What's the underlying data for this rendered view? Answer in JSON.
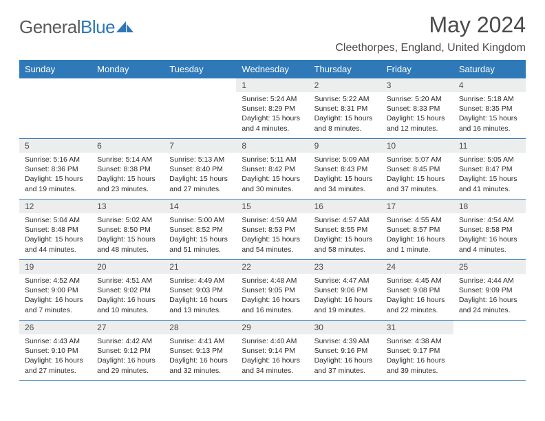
{
  "logo": {
    "text1": "General",
    "text2": "Blue"
  },
  "title": "May 2024",
  "location": "Cleethorpes, England, United Kingdom",
  "colors": {
    "header_bg": "#2f79b9",
    "header_text": "#ffffff",
    "daynum_bg": "#eceded",
    "text": "#2b2b2b",
    "rule": "#2f79b9"
  },
  "day_headers": [
    "Sunday",
    "Monday",
    "Tuesday",
    "Wednesday",
    "Thursday",
    "Friday",
    "Saturday"
  ],
  "weeks": [
    [
      null,
      null,
      null,
      {
        "n": "1",
        "sr": "5:24 AM",
        "ss": "8:29 PM",
        "dl": "15 hours and 4 minutes."
      },
      {
        "n": "2",
        "sr": "5:22 AM",
        "ss": "8:31 PM",
        "dl": "15 hours and 8 minutes."
      },
      {
        "n": "3",
        "sr": "5:20 AM",
        "ss": "8:33 PM",
        "dl": "15 hours and 12 minutes."
      },
      {
        "n": "4",
        "sr": "5:18 AM",
        "ss": "8:35 PM",
        "dl": "15 hours and 16 minutes."
      }
    ],
    [
      {
        "n": "5",
        "sr": "5:16 AM",
        "ss": "8:36 PM",
        "dl": "15 hours and 19 minutes."
      },
      {
        "n": "6",
        "sr": "5:14 AM",
        "ss": "8:38 PM",
        "dl": "15 hours and 23 minutes."
      },
      {
        "n": "7",
        "sr": "5:13 AM",
        "ss": "8:40 PM",
        "dl": "15 hours and 27 minutes."
      },
      {
        "n": "8",
        "sr": "5:11 AM",
        "ss": "8:42 PM",
        "dl": "15 hours and 30 minutes."
      },
      {
        "n": "9",
        "sr": "5:09 AM",
        "ss": "8:43 PM",
        "dl": "15 hours and 34 minutes."
      },
      {
        "n": "10",
        "sr": "5:07 AM",
        "ss": "8:45 PM",
        "dl": "15 hours and 37 minutes."
      },
      {
        "n": "11",
        "sr": "5:05 AM",
        "ss": "8:47 PM",
        "dl": "15 hours and 41 minutes."
      }
    ],
    [
      {
        "n": "12",
        "sr": "5:04 AM",
        "ss": "8:48 PM",
        "dl": "15 hours and 44 minutes."
      },
      {
        "n": "13",
        "sr": "5:02 AM",
        "ss": "8:50 PM",
        "dl": "15 hours and 48 minutes."
      },
      {
        "n": "14",
        "sr": "5:00 AM",
        "ss": "8:52 PM",
        "dl": "15 hours and 51 minutes."
      },
      {
        "n": "15",
        "sr": "4:59 AM",
        "ss": "8:53 PM",
        "dl": "15 hours and 54 minutes."
      },
      {
        "n": "16",
        "sr": "4:57 AM",
        "ss": "8:55 PM",
        "dl": "15 hours and 58 minutes."
      },
      {
        "n": "17",
        "sr": "4:55 AM",
        "ss": "8:57 PM",
        "dl": "16 hours and 1 minute."
      },
      {
        "n": "18",
        "sr": "4:54 AM",
        "ss": "8:58 PM",
        "dl": "16 hours and 4 minutes."
      }
    ],
    [
      {
        "n": "19",
        "sr": "4:52 AM",
        "ss": "9:00 PM",
        "dl": "16 hours and 7 minutes."
      },
      {
        "n": "20",
        "sr": "4:51 AM",
        "ss": "9:02 PM",
        "dl": "16 hours and 10 minutes."
      },
      {
        "n": "21",
        "sr": "4:49 AM",
        "ss": "9:03 PM",
        "dl": "16 hours and 13 minutes."
      },
      {
        "n": "22",
        "sr": "4:48 AM",
        "ss": "9:05 PM",
        "dl": "16 hours and 16 minutes."
      },
      {
        "n": "23",
        "sr": "4:47 AM",
        "ss": "9:06 PM",
        "dl": "16 hours and 19 minutes."
      },
      {
        "n": "24",
        "sr": "4:45 AM",
        "ss": "9:08 PM",
        "dl": "16 hours and 22 minutes."
      },
      {
        "n": "25",
        "sr": "4:44 AM",
        "ss": "9:09 PM",
        "dl": "16 hours and 24 minutes."
      }
    ],
    [
      {
        "n": "26",
        "sr": "4:43 AM",
        "ss": "9:10 PM",
        "dl": "16 hours and 27 minutes."
      },
      {
        "n": "27",
        "sr": "4:42 AM",
        "ss": "9:12 PM",
        "dl": "16 hours and 29 minutes."
      },
      {
        "n": "28",
        "sr": "4:41 AM",
        "ss": "9:13 PM",
        "dl": "16 hours and 32 minutes."
      },
      {
        "n": "29",
        "sr": "4:40 AM",
        "ss": "9:14 PM",
        "dl": "16 hours and 34 minutes."
      },
      {
        "n": "30",
        "sr": "4:39 AM",
        "ss": "9:16 PM",
        "dl": "16 hours and 37 minutes."
      },
      {
        "n": "31",
        "sr": "4:38 AM",
        "ss": "9:17 PM",
        "dl": "16 hours and 39 minutes."
      },
      null
    ]
  ],
  "labels": {
    "sunrise": "Sunrise:",
    "sunset": "Sunset:",
    "daylight": "Daylight:"
  }
}
